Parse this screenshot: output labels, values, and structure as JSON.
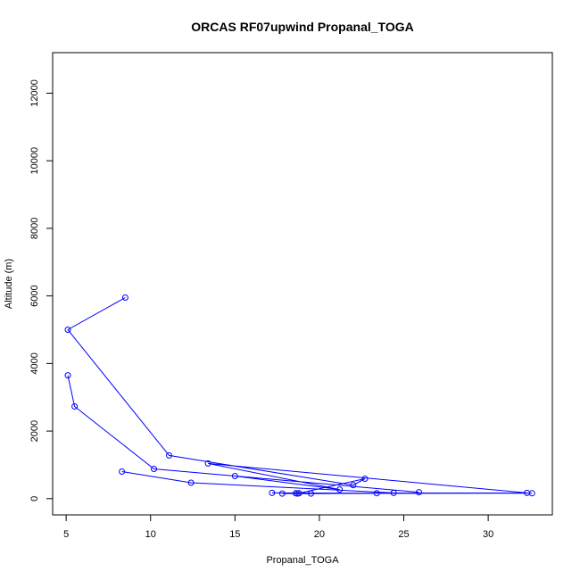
{
  "chart_data": {
    "type": "line",
    "title": "ORCAS RF07upwind Propanal_TOGA",
    "xlabel": "Propanal_TOGA",
    "ylabel": "Altitude (m)",
    "xlim": [
      4.2,
      33.8
    ],
    "ylim": [
      -480,
      13200
    ],
    "xticks": [
      5,
      10,
      15,
      20,
      25,
      30
    ],
    "yticks": [
      0,
      2000,
      4000,
      6000,
      8000,
      10000,
      12000
    ],
    "grid": false,
    "series": [
      {
        "color": "#0000ff",
        "markers": "open-circle",
        "points": [
          [
            8.5,
            5950
          ],
          [
            5.1,
            5000
          ],
          [
            11.1,
            1280
          ],
          [
            22.0,
            400
          ],
          [
            22.7,
            590
          ],
          [
            18.7,
            150
          ],
          [
            32.3,
            170
          ],
          [
            13.4,
            1040
          ],
          [
            21.2,
            270
          ],
          [
            15.0,
            670
          ],
          [
            25.9,
            190
          ],
          [
            10.2,
            880
          ],
          [
            5.5,
            2730
          ],
          [
            5.1,
            3650
          ]
        ]
      },
      {
        "color": "#0000ff",
        "markers": "open-circle",
        "points": [
          [
            8.3,
            800
          ],
          [
            12.4,
            470
          ],
          [
            24.4,
            170
          ],
          [
            32.6,
            160
          ],
          [
            18.6,
            160
          ],
          [
            17.2,
            170
          ],
          [
            23.4,
            160
          ],
          [
            19.5,
            150
          ],
          [
            17.8,
            150
          ],
          [
            18.8,
            160
          ]
        ]
      }
    ]
  }
}
